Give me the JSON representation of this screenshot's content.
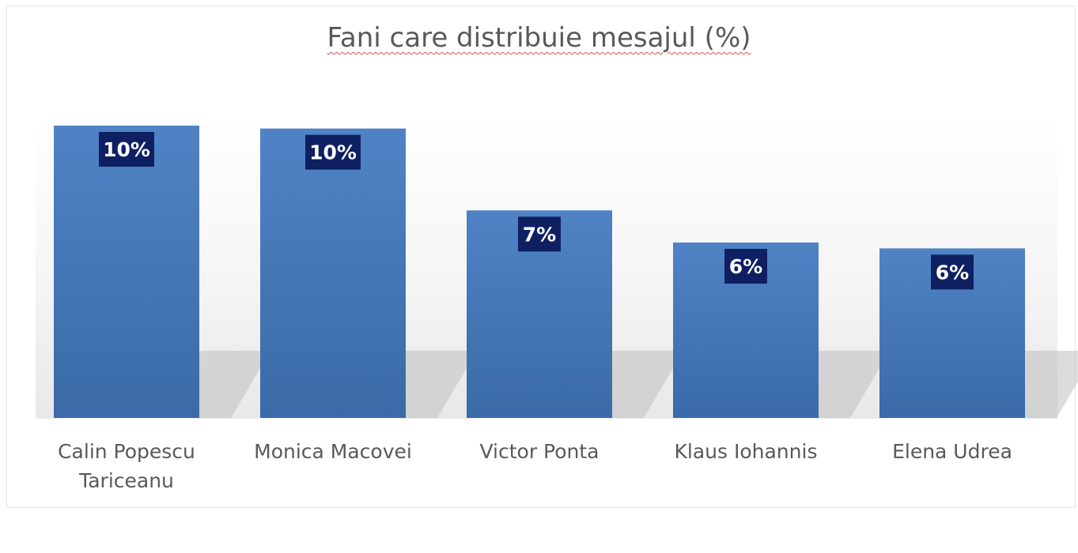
{
  "chart_data": {
    "type": "bar",
    "title": "Fani care distribuie mesajul (%)",
    "categories": [
      "Calin Popescu Tariceanu",
      "Monica Macovei",
      "Victor Ponta",
      "Klaus Iohannis",
      "Elena Udrea"
    ],
    "category_lines": [
      [
        "Calin Popescu",
        "Tariceanu"
      ],
      [
        "Monica Macovei"
      ],
      [
        "Victor Ponta"
      ],
      [
        "Klaus Iohannis"
      ],
      [
        "Elena Udrea"
      ]
    ],
    "values": [
      10,
      9.9,
      7.1,
      6.0,
      5.8
    ],
    "data_labels": [
      "10%",
      "10%",
      "7%",
      "6%",
      "6%"
    ],
    "ylim": [
      0,
      10
    ],
    "grid": false,
    "legend": "none",
    "colors": {
      "bar_top": "#4f83c5",
      "bar_bottom": "#3a6aa8",
      "label_box": "#0f2062",
      "text": "#595959"
    }
  }
}
